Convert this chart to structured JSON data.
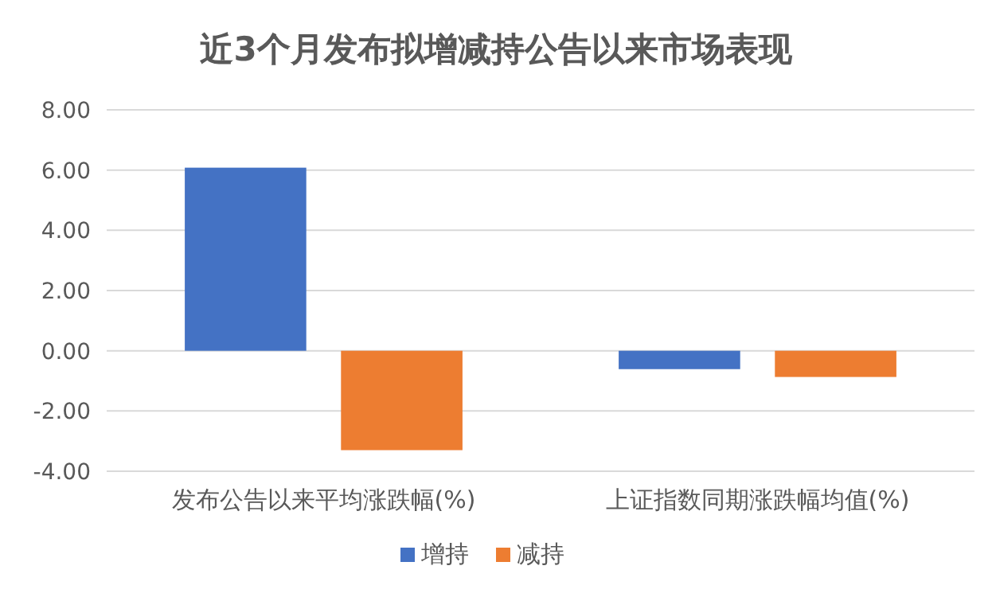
{
  "chart_data": {
    "type": "bar",
    "title": "近3个月发布拟增减持公告以来市场表现",
    "categories": [
      "发布公告以来平均涨跌幅(%)",
      "上证指数同期涨跌幅均值(%)"
    ],
    "series": [
      {
        "name": "增持",
        "color": "#4472c4",
        "values": [
          6.08,
          -0.61
        ]
      },
      {
        "name": "减持",
        "color": "#ed7d31",
        "values": [
          -3.3,
          -0.87
        ]
      }
    ],
    "ylim": [
      -4,
      8
    ],
    "yticks": [
      {
        "value": -4,
        "label": "-4.00"
      },
      {
        "value": -2,
        "label": "-2.00"
      },
      {
        "value": 0,
        "label": "0.00"
      },
      {
        "value": 2,
        "label": "2.00"
      },
      {
        "value": 4,
        "label": "4.00"
      },
      {
        "value": 6,
        "label": "6.00"
      },
      {
        "value": 8,
        "label": "8.00"
      }
    ],
    "grid": "y",
    "legend": "bottom"
  }
}
